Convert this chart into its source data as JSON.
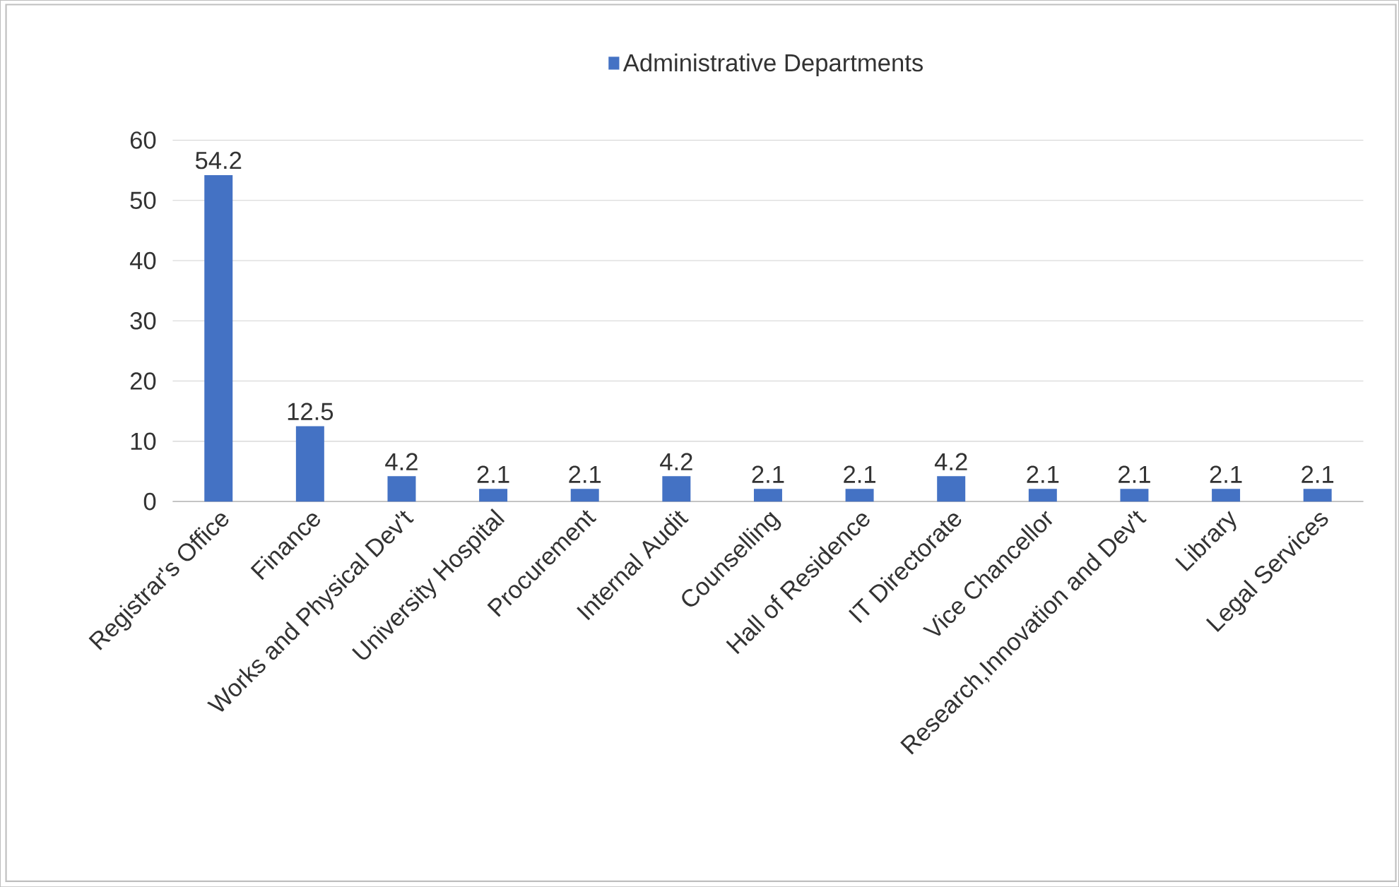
{
  "chart_data": {
    "type": "bar",
    "categories": [
      "Registrar's Office",
      "Finance",
      "Works and Physical Dev't",
      "University Hospital",
      "Procurement",
      "Internal Audit",
      "Counselling",
      "Hall of Residence",
      "IT Directorate",
      "Vice Chancellor",
      "Research,Innovation and Dev't",
      "Library",
      "Legal Services"
    ],
    "series": [
      {
        "name": "Administrative Departments",
        "color": "#4472c4",
        "values": [
          54.2,
          12.5,
          4.2,
          2.1,
          2.1,
          4.2,
          2.1,
          2.1,
          4.2,
          2.1,
          2.1,
          2.1,
          2.1
        ]
      }
    ],
    "ylim": [
      0,
      60
    ],
    "yticks": [
      0,
      10,
      20,
      30,
      40,
      50,
      60
    ],
    "grid": "y",
    "legend": "top",
    "data_labels": true
  }
}
